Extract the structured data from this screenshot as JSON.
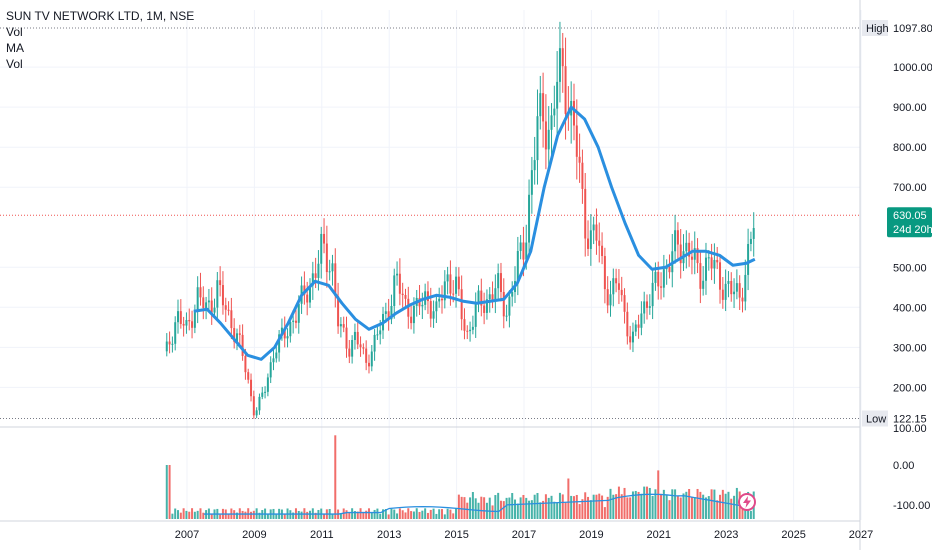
{
  "legend": {
    "title": "SUN TV NETWORK LTD, 1M, NSE",
    "line1": "Vol",
    "line2": "MA",
    "line3": "Vol"
  },
  "price_axis": {
    "high_label": "High",
    "high_value": "1097.80",
    "low_label": "Low",
    "low_value": "122.15",
    "last_price": "630.05",
    "countdown": "24d 20h",
    "ticks": [
      "1000.00",
      "900.00",
      "800.00",
      "700.00",
      "500.00",
      "400.00",
      "300.00",
      "200.00"
    ],
    "vol_ticks": [
      "100.00",
      "0.00",
      "-100.00"
    ]
  },
  "colors": {
    "up": "#26a69a",
    "down": "#ef5350",
    "ma": "#2a8fe0",
    "last_price_tag": "#089981",
    "flash": "#e04a8a"
  },
  "icons": {
    "flash": "lightning-icon"
  },
  "chart_data": {
    "type": "candlestick",
    "title": "SUN TV NETWORK LTD, 1M, NSE",
    "x_axis_labels": [
      "2007",
      "2009",
      "2011",
      "2013",
      "2015",
      "2017",
      "2019",
      "2021",
      "2023",
      "2025",
      "2027"
    ],
    "ylim": [
      90,
      1130
    ],
    "high": 1097.8,
    "low": 122.15,
    "last": 630.05,
    "price_path": [
      [
        2006.4,
        290
      ],
      [
        2006.7,
        380
      ],
      [
        2007.0,
        340
      ],
      [
        2007.3,
        430
      ],
      [
        2007.6,
        390
      ],
      [
        2007.9,
        450
      ],
      [
        2008.2,
        380
      ],
      [
        2008.5,
        330
      ],
      [
        2008.8,
        220
      ],
      [
        2009.0,
        135
      ],
      [
        2009.3,
        190
      ],
      [
        2009.6,
        300
      ],
      [
        2009.9,
        330
      ],
      [
        2010.2,
        380
      ],
      [
        2010.5,
        430
      ],
      [
        2010.8,
        490
      ],
      [
        2011.0,
        540
      ],
      [
        2011.3,
        510
      ],
      [
        2011.5,
        350
      ],
      [
        2011.8,
        300
      ],
      [
        2012.0,
        330
      ],
      [
        2012.3,
        260
      ],
      [
        2012.6,
        320
      ],
      [
        2012.9,
        380
      ],
      [
        2013.2,
        470
      ],
      [
        2013.5,
        400
      ],
      [
        2013.8,
        390
      ],
      [
        2014.1,
        430
      ],
      [
        2014.4,
        380
      ],
      [
        2014.7,
        480
      ],
      [
        2015.0,
        440
      ],
      [
        2015.3,
        330
      ],
      [
        2015.6,
        400
      ],
      [
        2015.9,
        420
      ],
      [
        2016.2,
        450
      ],
      [
        2016.5,
        390
      ],
      [
        2016.8,
        500
      ],
      [
        2017.0,
        560
      ],
      [
        2017.2,
        700
      ],
      [
        2017.4,
        850
      ],
      [
        2017.6,
        900
      ],
      [
        2017.8,
        820
      ],
      [
        2018.0,
        980
      ],
      [
        2018.2,
        1000
      ],
      [
        2018.4,
        860
      ],
      [
        2018.6,
        780
      ],
      [
        2018.8,
        620
      ],
      [
        2019.0,
        560
      ],
      [
        2019.2,
        580
      ],
      [
        2019.4,
        460
      ],
      [
        2019.6,
        420
      ],
      [
        2019.8,
        470
      ],
      [
        2020.0,
        380
      ],
      [
        2020.2,
        300
      ],
      [
        2020.5,
        400
      ],
      [
        2020.8,
        430
      ],
      [
        2021.0,
        470
      ],
      [
        2021.3,
        510
      ],
      [
        2021.6,
        560
      ],
      [
        2021.9,
        540
      ],
      [
        2022.2,
        480
      ],
      [
        2022.5,
        520
      ],
      [
        2022.8,
        470
      ],
      [
        2023.1,
        440
      ],
      [
        2023.4,
        430
      ],
      [
        2023.7,
        540
      ],
      [
        2023.85,
        630
      ]
    ],
    "ma_series": [
      [
        2007.2,
        390
      ],
      [
        2007.6,
        395
      ],
      [
        2008.0,
        360
      ],
      [
        2008.4,
        320
      ],
      [
        2008.8,
        280
      ],
      [
        2009.2,
        270
      ],
      [
        2009.6,
        300
      ],
      [
        2010.0,
        360
      ],
      [
        2010.4,
        430
      ],
      [
        2010.8,
        465
      ],
      [
        2011.2,
        455
      ],
      [
        2011.6,
        410
      ],
      [
        2012.0,
        370
      ],
      [
        2012.4,
        345
      ],
      [
        2012.8,
        360
      ],
      [
        2013.2,
        385
      ],
      [
        2013.6,
        405
      ],
      [
        2014.0,
        420
      ],
      [
        2014.4,
        430
      ],
      [
        2014.8,
        425
      ],
      [
        2015.2,
        415
      ],
      [
        2015.6,
        410
      ],
      [
        2016.0,
        415
      ],
      [
        2016.4,
        420
      ],
      [
        2016.8,
        460
      ],
      [
        2017.2,
        540
      ],
      [
        2017.6,
        700
      ],
      [
        2018.0,
        830
      ],
      [
        2018.4,
        900
      ],
      [
        2018.8,
        870
      ],
      [
        2019.2,
        800
      ],
      [
        2019.6,
        700
      ],
      [
        2020.0,
        610
      ],
      [
        2020.4,
        530
      ],
      [
        2020.8,
        495
      ],
      [
        2021.2,
        500
      ],
      [
        2021.6,
        520
      ],
      [
        2022.0,
        540
      ],
      [
        2022.4,
        540
      ],
      [
        2022.8,
        530
      ],
      [
        2023.2,
        505
      ],
      [
        2023.6,
        510
      ],
      [
        2023.85,
        520
      ]
    ],
    "volume_peaks": [
      [
        2006.45,
        1.0
      ],
      [
        2011.4,
        1.55
      ],
      [
        2015.4,
        0.4
      ],
      [
        2015.9,
        0.3
      ],
      [
        2016.9,
        0.4
      ],
      [
        2018.3,
        0.75
      ],
      [
        2019.1,
        0.45
      ],
      [
        2019.8,
        0.6
      ],
      [
        2020.1,
        0.4
      ],
      [
        2020.6,
        0.6
      ],
      [
        2020.9,
        0.55
      ],
      [
        2021.0,
        0.9
      ],
      [
        2021.4,
        0.55
      ],
      [
        2022.3,
        0.45
      ],
      [
        2023.7,
        0.15
      ]
    ]
  }
}
